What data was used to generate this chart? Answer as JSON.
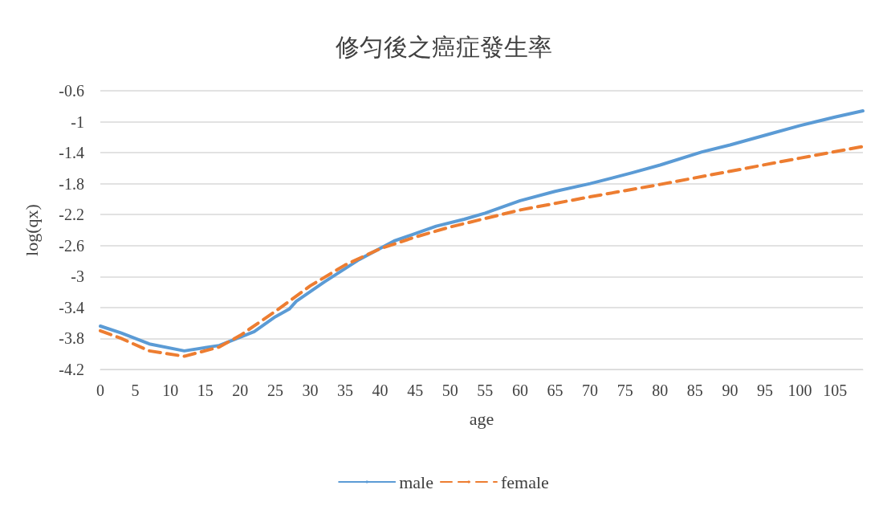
{
  "chart_data": {
    "type": "line",
    "title": "修匀後之癌症發生率",
    "xlabel": "age",
    "ylabel": "log(qx)",
    "xlim": [
      0,
      109
    ],
    "xticks": [
      0,
      5,
      10,
      15,
      20,
      25,
      30,
      35,
      40,
      45,
      50,
      55,
      60,
      65,
      70,
      75,
      80,
      85,
      90,
      95,
      100,
      105
    ],
    "ylim": [
      -4.2,
      -0.6
    ],
    "yticks": [
      -4.2,
      -3.8,
      -3.4,
      -3,
      -2.6,
      -2.2,
      -1.8,
      -1.4,
      -1,
      -0.6
    ],
    "grid": "y",
    "legend": "bottom",
    "marker": "none",
    "series": [
      {
        "name": "male",
        "color": "#5b9bd5",
        "line_style": "solid",
        "x": [
          0,
          3,
          7,
          12,
          17,
          22,
          25,
          27,
          28,
          32,
          37,
          42,
          48,
          52,
          55,
          60,
          65,
          70,
          76,
          80,
          86,
          90,
          96,
          100,
          105,
          109
        ],
        "values": [
          -3.64,
          -3.73,
          -3.87,
          -3.96,
          -3.89,
          -3.71,
          -3.52,
          -3.42,
          -3.32,
          -3.07,
          -2.78,
          -2.54,
          -2.35,
          -2.26,
          -2.18,
          -2.02,
          -1.9,
          -1.8,
          -1.66,
          -1.56,
          -1.39,
          -1.3,
          -1.15,
          -1.05,
          -0.94,
          -0.86
        ]
      },
      {
        "name": "female",
        "color": "#ed7d31",
        "line_style": "dashed",
        "x": [
          0,
          3,
          7,
          12,
          17,
          20,
          25,
          30,
          35,
          40,
          45,
          50,
          55,
          60,
          70,
          80,
          90,
          100,
          109
        ],
        "values": [
          -3.7,
          -3.8,
          -3.96,
          -4.03,
          -3.91,
          -3.76,
          -3.45,
          -3.12,
          -2.85,
          -2.64,
          -2.49,
          -2.36,
          -2.25,
          -2.14,
          -1.97,
          -1.81,
          -1.64,
          -1.47,
          -1.32
        ]
      }
    ]
  }
}
